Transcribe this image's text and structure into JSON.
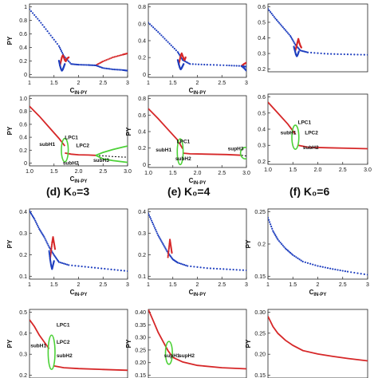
{
  "figure": {
    "row_titles": [
      "(d) K₀=3",
      "(e) K₀=4",
      "(f) K₀=6"
    ]
  },
  "colors": {
    "stable": "#d62728",
    "unstable": "#1f3fbf",
    "cycle": "#4cd137",
    "other": "#000000"
  },
  "chart_data": [
    {
      "id": "a-top",
      "type": "scatter",
      "xlabel": "C_IN-PY",
      "ylabel": "PY",
      "xlim": [
        1,
        3
      ],
      "ylim": [
        0,
        1.1
      ],
      "xticks": [
        "1",
        "1.5",
        "2",
        "2.5",
        "3"
      ],
      "yticks": [
        "0",
        "0.2",
        "0.4",
        "0.6",
        "0.8",
        "1"
      ],
      "series": [
        {
          "color": "blue",
          "x": [
            1.0,
            1.2,
            1.4,
            1.6,
            1.7,
            1.85,
            2.0,
            2.2,
            2.35
          ],
          "y": [
            1.02,
            0.85,
            0.66,
            0.47,
            0.32,
            0.2,
            0.19,
            0.185,
            0.18
          ]
        },
        {
          "color": "red",
          "x": [
            2.35,
            2.5,
            2.7,
            2.9,
            3.0
          ],
          "y": [
            0.18,
            0.24,
            0.3,
            0.34,
            0.36
          ]
        },
        {
          "color": "blue",
          "x": [
            2.35,
            2.5,
            2.7,
            2.9,
            3.0
          ],
          "y": [
            0.18,
            0.14,
            0.12,
            0.11,
            0.1
          ]
        },
        {
          "color": "red",
          "x": [
            1.62,
            1.64,
            1.66,
            1.68,
            1.7,
            1.72,
            1.74,
            1.76,
            1.8
          ],
          "y": [
            0.18,
            0.24,
            0.3,
            0.33,
            0.3,
            0.26,
            0.24,
            0.28,
            0.3
          ]
        },
        {
          "color": "blue",
          "x": [
            1.6,
            1.62,
            1.64,
            1.66,
            1.68,
            1.7,
            1.72
          ],
          "y": [
            0.25,
            0.18,
            0.13,
            0.1,
            0.12,
            0.16,
            0.2
          ]
        }
      ]
    },
    {
      "id": "b-top",
      "type": "scatter",
      "xlabel": "C_IN-PY",
      "ylabel": "",
      "xlim": [
        1,
        3
      ],
      "ylim": [
        0,
        1.1
      ],
      "xticks": [
        "1",
        "1.5",
        "2",
        "2.5",
        "3"
      ],
      "yticks": [
        "0",
        "0.2",
        "0.4",
        "0.6",
        "0.8"
      ],
      "series": [
        {
          "color": "blue",
          "x": [
            1.0,
            1.2,
            1.4,
            1.6,
            1.7,
            1.85,
            2.2,
            2.6,
            2.9,
            3.0
          ],
          "y": [
            0.82,
            0.68,
            0.53,
            0.38,
            0.26,
            0.2,
            0.19,
            0.18,
            0.17,
            0.16
          ]
        },
        {
          "color": "red",
          "x": [
            2.9,
            2.95,
            3.0
          ],
          "y": [
            0.17,
            0.2,
            0.22
          ]
        },
        {
          "color": "blue",
          "x": [
            2.9,
            2.95,
            3.0
          ],
          "y": [
            0.17,
            0.14,
            0.1
          ]
        },
        {
          "color": "red",
          "x": [
            1.62,
            1.64,
            1.66,
            1.68,
            1.7,
            1.72,
            1.74,
            1.76
          ],
          "y": [
            0.2,
            0.26,
            0.32,
            0.36,
            0.32,
            0.28,
            0.26,
            0.3
          ]
        },
        {
          "color": "blue",
          "x": [
            1.6,
            1.62,
            1.64,
            1.66,
            1.68,
            1.7,
            1.72
          ],
          "y": [
            0.26,
            0.2,
            0.15,
            0.12,
            0.14,
            0.17,
            0.2
          ]
        }
      ]
    },
    {
      "id": "c-top",
      "type": "scatter",
      "xlabel": "",
      "ylabel": "",
      "xlim": [
        1,
        3
      ],
      "ylim": [
        0,
        0.7
      ],
      "xticks": [],
      "yticks": [
        "0.2",
        "0.3",
        "0.4",
        "0.5",
        "0.6"
      ],
      "series": [
        {
          "color": "blue",
          "x": [
            1.0,
            1.15,
            1.3,
            1.45,
            1.55,
            1.65,
            1.8,
            2.2,
            2.6,
            3.0
          ],
          "y": [
            0.65,
            0.55,
            0.46,
            0.37,
            0.28,
            0.22,
            0.2,
            0.185,
            0.18,
            0.175
          ]
        },
        {
          "color": "red",
          "x": [
            1.55,
            1.57,
            1.59,
            1.61,
            1.63,
            1.65,
            1.67
          ],
          "y": [
            0.22,
            0.26,
            0.3,
            0.34,
            0.3,
            0.27,
            0.25
          ]
        },
        {
          "color": "blue",
          "x": [
            1.52,
            1.54,
            1.56,
            1.58,
            1.6,
            1.62
          ],
          "y": [
            0.26,
            0.22,
            0.18,
            0.16,
            0.18,
            0.21
          ]
        }
      ]
    },
    {
      "id": "a-bot",
      "type": "line",
      "xlabel": "C_IN-PY",
      "ylabel": "PY",
      "xlim": [
        1,
        3
      ],
      "ylim": [
        0,
        1.2
      ],
      "xticks": [
        "1.0",
        "1.5",
        "2.0",
        "2.5",
        "3.0"
      ],
      "yticks": [
        "0",
        "0.2",
        "0.4",
        "0.6",
        "0.8",
        "1.0"
      ],
      "annotations": [
        "LPC1",
        "LPC2",
        "subH1",
        "subH2",
        "subH3"
      ],
      "series": [
        {
          "color": "red",
          "x": [
            1.0,
            1.2,
            1.4,
            1.6,
            1.72
          ],
          "y": [
            1.02,
            0.85,
            0.66,
            0.47,
            0.34
          ]
        },
        {
          "color": "red",
          "x": [
            1.72,
            1.85,
            2.0,
            2.2,
            2.35
          ],
          "y": [
            0.22,
            0.2,
            0.19,
            0.185,
            0.18
          ]
        },
        {
          "color": "black",
          "x": [
            2.35,
            2.5,
            2.7,
            2.9,
            3.0
          ],
          "y": [
            0.18,
            0.17,
            0.16,
            0.15,
            0.15
          ]
        },
        {
          "color": "green",
          "x": [
            2.35,
            2.5,
            2.7,
            2.9,
            3.0
          ],
          "y": [
            0.18,
            0.23,
            0.28,
            0.32,
            0.34
          ]
        },
        {
          "color": "green",
          "x": [
            2.35,
            2.5,
            2.7,
            2.9,
            3.0
          ],
          "y": [
            0.18,
            0.12,
            0.09,
            0.07,
            0.06
          ]
        }
      ]
    },
    {
      "id": "b-bot",
      "type": "line",
      "xlabel": "C_IN-PY",
      "ylabel": "PY",
      "xlim": [
        1,
        3
      ],
      "ylim": [
        0,
        1.0
      ],
      "xticks": [
        "1.0",
        "1.5",
        "2.0",
        "2.5",
        "3.0"
      ],
      "yticks": [
        "0",
        "0.2",
        "0.4",
        "0.6",
        "0.8"
      ],
      "annotations": [
        "LPC1",
        "subH1",
        "subH2",
        "supH3"
      ],
      "series": [
        {
          "color": "red",
          "x": [
            1.0,
            1.2,
            1.4,
            1.6,
            1.7
          ],
          "y": [
            0.82,
            0.68,
            0.53,
            0.38,
            0.26
          ]
        },
        {
          "color": "red",
          "x": [
            1.7,
            1.85,
            2.2,
            2.6,
            2.9
          ],
          "y": [
            0.2,
            0.19,
            0.185,
            0.18,
            0.17
          ]
        },
        {
          "color": "black",
          "x": [
            2.9,
            2.95,
            3.0
          ],
          "y": [
            0.17,
            0.165,
            0.16
          ]
        }
      ]
    },
    {
      "id": "c-bot",
      "type": "line",
      "xlabel": "",
      "ylabel": "",
      "xlim": [
        1,
        3
      ],
      "ylim": [
        0,
        0.7
      ],
      "xticks": [
        "1.0",
        "1.5",
        "2.0",
        "2.5",
        "3.0"
      ],
      "yticks": [
        "0.2",
        "0.3",
        "0.4",
        "0.5",
        "0.6"
      ],
      "annotations": [
        "LPC1",
        "LPC2",
        "subH1",
        "subH2"
      ],
      "series": [
        {
          "color": "red",
          "x": [
            1.0,
            1.2,
            1.4,
            1.55
          ],
          "y": [
            0.62,
            0.51,
            0.4,
            0.3
          ]
        },
        {
          "color": "red",
          "x": [
            1.6,
            1.8,
            2.2,
            2.6,
            3.0
          ],
          "y": [
            0.19,
            0.17,
            0.165,
            0.16,
            0.155
          ]
        }
      ]
    },
    {
      "id": "d-top",
      "type": "scatter",
      "xlabel": "C_IN-PY",
      "ylabel": "PY",
      "xlim": [
        1,
        3
      ],
      "ylim": [
        0.1,
        0.45
      ],
      "xticks": [
        "1",
        "1.5",
        "2",
        "2.5",
        "3"
      ],
      "yticks": [
        "0.1",
        "0.2",
        "0.3",
        "0.4"
      ],
      "series": [
        {
          "color": "blue",
          "x": [
            1.0,
            1.1,
            1.2,
            1.3,
            1.4,
            1.5,
            1.6,
            1.8,
            2.2,
            2.6,
            3.0
          ],
          "y": [
            0.44,
            0.4,
            0.35,
            0.31,
            0.26,
            0.22,
            0.185,
            0.17,
            0.16,
            0.15,
            0.14
          ]
        },
        {
          "color": "red",
          "x": [
            1.42,
            1.44,
            1.46,
            1.48,
            1.5,
            1.52
          ],
          "y": [
            0.2,
            0.24,
            0.28,
            0.31,
            0.28,
            0.25
          ]
        },
        {
          "color": "blue",
          "x": [
            1.4,
            1.42,
            1.44,
            1.46,
            1.48,
            1.5
          ],
          "y": [
            0.24,
            0.2,
            0.17,
            0.15,
            0.17,
            0.19
          ]
        }
      ]
    },
    {
      "id": "e-top",
      "type": "scatter",
      "xlabel": "C_IN-PY",
      "ylabel": "",
      "xlim": [
        1,
        3
      ],
      "ylim": [
        0.1,
        0.42
      ],
      "xticks": [
        "1",
        "1.5",
        "2",
        "2.5",
        "3"
      ],
      "yticks": [
        "0.1",
        "0.2",
        "0.3",
        "0.4"
      ],
      "series": [
        {
          "color": "blue",
          "x": [
            1.0,
            1.1,
            1.2,
            1.3,
            1.4,
            1.5,
            1.6,
            1.8,
            2.2,
            2.6,
            3.0
          ],
          "y": [
            0.4,
            0.35,
            0.3,
            0.26,
            0.22,
            0.19,
            0.175,
            0.16,
            0.15,
            0.145,
            0.14
          ]
        },
        {
          "color": "red",
          "x": [
            1.4,
            1.42,
            1.44,
            1.46,
            1.48
          ],
          "y": [
            0.2,
            0.24,
            0.28,
            0.25,
            0.22
          ]
        }
      ]
    },
    {
      "id": "f-top",
      "type": "scatter",
      "xlabel": "C_IN-PY",
      "ylabel": "PY",
      "xlim": [
        1,
        3
      ],
      "ylim": [
        0.14,
        0.3
      ],
      "xticks": [
        "1",
        "1.5",
        "2",
        "2.5",
        "3"
      ],
      "yticks": [
        "0.15",
        "0.2",
        "0.25"
      ],
      "series": [
        {
          "color": "blue",
          "x": [
            1.0,
            1.1,
            1.2,
            1.35,
            1.5,
            1.7,
            2.0,
            2.3,
            2.6,
            3.0
          ],
          "y": [
            0.28,
            0.25,
            0.23,
            0.21,
            0.195,
            0.18,
            0.17,
            0.163,
            0.157,
            0.15
          ]
        }
      ]
    },
    {
      "id": "d-bot",
      "type": "line",
      "xlabel": "",
      "ylabel": "PY",
      "xlim": [
        1,
        3
      ],
      "ylim": [
        0.1,
        0.5
      ],
      "xticks": [],
      "yticks": [
        "0.2",
        "0.3",
        "0.4",
        "0.5"
      ],
      "annotations": [
        "LPC1",
        "LPC2",
        "subH1",
        "subH2"
      ],
      "series": [
        {
          "color": "red",
          "x": [
            1.0,
            1.1,
            1.2,
            1.3,
            1.4
          ],
          "y": [
            0.44,
            0.4,
            0.35,
            0.31,
            0.27
          ]
        },
        {
          "color": "red",
          "x": [
            1.5,
            1.7,
            2.0,
            2.5,
            3.0
          ],
          "y": [
            0.17,
            0.16,
            0.155,
            0.15,
            0.145
          ]
        }
      ]
    },
    {
      "id": "e-bot",
      "type": "line",
      "xlabel": "",
      "ylabel": "PY",
      "xlim": [
        1,
        3
      ],
      "ylim": [
        0.1,
        0.4
      ],
      "xticks": [],
      "yticks": [
        "0.15",
        "0.20",
        "0.25",
        "0.30",
        "0.35",
        "0.40"
      ],
      "annotations": [
        "supH1",
        "supH2"
      ],
      "series": [
        {
          "color": "red",
          "x": [
            1.0,
            1.1,
            1.2,
            1.3,
            1.4,
            1.5,
            1.7,
            2.0,
            2.5,
            3.0
          ],
          "y": [
            0.4,
            0.35,
            0.3,
            0.26,
            0.22,
            0.19,
            0.17,
            0.155,
            0.145,
            0.14
          ]
        }
      ]
    },
    {
      "id": "f-bot",
      "type": "line",
      "xlabel": "",
      "ylabel": "PY",
      "xlim": [
        1,
        3
      ],
      "ylim": [
        0.1,
        0.3
      ],
      "xticks": [],
      "yticks": [
        "0.15",
        "0.20",
        "0.25",
        "0.30"
      ],
      "series": [
        {
          "color": "red",
          "x": [
            1.0,
            1.1,
            1.2,
            1.35,
            1.5,
            1.7,
            2.0,
            2.3,
            2.6,
            3.0
          ],
          "y": [
            0.28,
            0.25,
            0.23,
            0.21,
            0.195,
            0.18,
            0.17,
            0.163,
            0.157,
            0.15
          ]
        }
      ]
    }
  ]
}
